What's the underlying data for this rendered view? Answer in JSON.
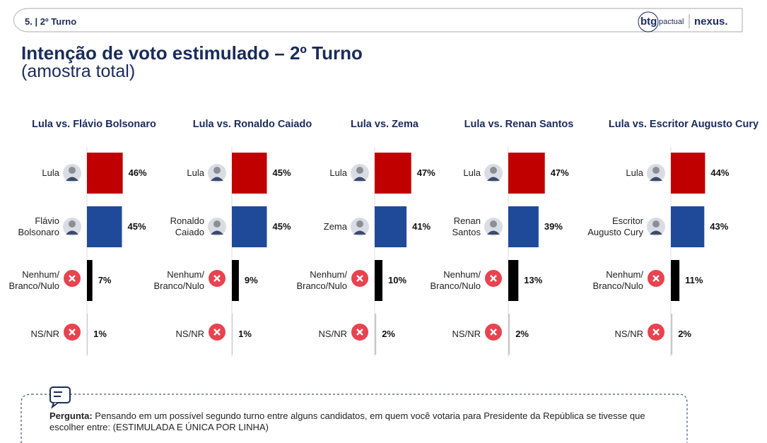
{
  "header": {
    "section": "5. | 2º Turno",
    "logo_left": "btg",
    "logo_left_sub": "pactual",
    "logo_right": "nexus."
  },
  "title": "Intenção de voto estimulado – 2º Turno",
  "subtitle": "(amostra total)",
  "question_label": "Pergunta:",
  "question_text": "Pensando em um possível segundo turno entre alguns candidatos, em quem você votaria para Presidente da República se tivesse que escolher entre: (ESTIMULADA E ÚNICA POR LINHA)",
  "chart_data": [
    {
      "type": "bar",
      "title": "Lula vs. Flávio Bolsonaro",
      "categories": [
        "Lula",
        "Flávio\nBolsonaro",
        "Nenhum/\nBranco/Nulo",
        "NS/NR"
      ],
      "values": [
        46,
        45,
        7,
        1
      ],
      "value_labels": [
        "46%",
        "45%",
        "7%",
        "1%"
      ],
      "colors": [
        "#c00000",
        "#1f4a9a",
        "#000000",
        "#c8c8c8"
      ]
    },
    {
      "type": "bar",
      "title": "Lula vs. Ronaldo Caiado",
      "categories": [
        "Lula",
        "Ronaldo\nCaiado",
        "Nenhum/\nBranco/Nulo",
        "NS/NR"
      ],
      "values": [
        45,
        45,
        9,
        1
      ],
      "value_labels": [
        "45%",
        "45%",
        "9%",
        "1%"
      ],
      "colors": [
        "#c00000",
        "#1f4a9a",
        "#000000",
        "#c8c8c8"
      ]
    },
    {
      "type": "bar",
      "title": "Lula vs. Zema",
      "categories": [
        "Lula",
        "Zema",
        "Nenhum/\nBranco/Nulo",
        "NS/NR"
      ],
      "values": [
        47,
        41,
        10,
        2
      ],
      "value_labels": [
        "47%",
        "41%",
        "10%",
        "2%"
      ],
      "colors": [
        "#c00000",
        "#1f4a9a",
        "#000000",
        "#c8c8c8"
      ]
    },
    {
      "type": "bar",
      "title": "Lula vs. Renan Santos",
      "categories": [
        "Lula",
        "Renan\nSantos",
        "Nenhum/\nBranco/Nulo",
        "NS/NR"
      ],
      "values": [
        47,
        39,
        13,
        2
      ],
      "value_labels": [
        "47%",
        "39%",
        "13%",
        "2%"
      ],
      "colors": [
        "#c00000",
        "#1f4a9a",
        "#000000",
        "#c8c8c8"
      ]
    },
    {
      "type": "bar",
      "title": "Lula vs. Escritor Augusto Cury",
      "categories": [
        "Lula",
        "Escritor\nAugusto Cury",
        "Nenhum/\nBranco/Nulo",
        "NS/NR"
      ],
      "values": [
        44,
        43,
        11,
        2
      ],
      "value_labels": [
        "44%",
        "43%",
        "11%",
        "2%"
      ],
      "colors": [
        "#c00000",
        "#1f4a9a",
        "#000000",
        "#c8c8c8"
      ]
    }
  ]
}
